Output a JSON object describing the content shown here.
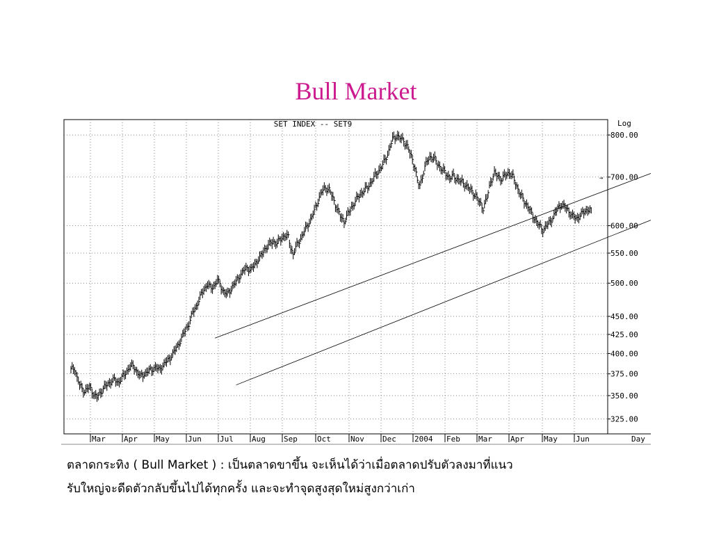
{
  "slide": {
    "title": "Bull Market",
    "caption_line1": "ตลาดกระทิง ( Bull Market ) : เป็นตลาดขาขึ้น จะเห็นได้ว่าเมื่อตลาดปรับตัวลงมาที่แนว",
    "caption_line2": "รับใหญ่จะดีดตัวกลับขึ้นไปได้ทุกครั้ง และจะทำจุดสูงสุดใหม่สูงกว่าเก่า"
  },
  "chart_data": {
    "type": "line",
    "title": "SET INDEX -- SET9",
    "scale": "Log",
    "xlabel": "Day",
    "grid": true,
    "ylim": [
      310,
      840
    ],
    "y_ticks": [
      "800.00",
      "700.00",
      "600.00",
      "550.00",
      "500.00",
      "450.00",
      "425.00",
      "400.00",
      "375.00",
      "350.00",
      "325.00"
    ],
    "x_labels": [
      "Mar",
      "Apr",
      "May",
      "Jun",
      "Jul",
      "Aug",
      "Sep",
      "Oct",
      "Nov",
      "Dec",
      "2004",
      "Feb",
      "Mar",
      "Apr",
      "May",
      "Jun"
    ],
    "series": [
      {
        "values": [
          [
            0,
            380
          ],
          [
            3,
            382
          ],
          [
            5,
            370
          ],
          [
            7,
            362
          ],
          [
            9,
            358
          ],
          [
            11,
            355
          ],
          [
            13,
            357
          ],
          [
            15,
            360
          ],
          [
            17,
            355
          ],
          [
            19,
            350
          ],
          [
            21,
            348
          ],
          [
            23,
            352
          ],
          [
            26,
            358
          ],
          [
            29,
            362
          ],
          [
            32,
            366
          ],
          [
            35,
            368
          ],
          [
            38,
            365
          ],
          [
            41,
            370
          ],
          [
            44,
            376
          ],
          [
            47,
            383
          ],
          [
            50,
            385
          ],
          [
            53,
            378
          ],
          [
            56,
            372
          ],
          [
            59,
            375
          ],
          [
            62,
            378
          ],
          [
            65,
            380
          ],
          [
            68,
            383
          ],
          [
            71,
            380
          ],
          [
            74,
            385
          ],
          [
            77,
            390
          ],
          [
            80,
            395
          ],
          [
            83,
            402
          ],
          [
            86,
            410
          ],
          [
            89,
            420
          ],
          [
            92,
            430
          ],
          [
            95,
            440
          ],
          [
            98,
            455
          ],
          [
            101,
            465
          ],
          [
            104,
            478
          ],
          [
            107,
            490
          ],
          [
            110,
            498
          ],
          [
            113,
            492
          ],
          [
            116,
            498
          ],
          [
            118,
            505
          ],
          [
            120,
            498
          ],
          [
            122,
            490
          ],
          [
            124,
            485
          ],
          [
            126,
            483
          ],
          [
            128,
            488
          ],
          [
            130,
            495
          ],
          [
            133,
            502
          ],
          [
            136,
            512
          ],
          [
            139,
            520
          ],
          [
            142,
            525
          ],
          [
            145,
            522
          ],
          [
            148,
            530
          ],
          [
            151,
            540
          ],
          [
            154,
            548
          ],
          [
            157,
            560
          ],
          [
            160,
            566
          ],
          [
            163,
            570
          ],
          [
            166,
            568
          ],
          [
            169,
            575
          ],
          [
            172,
            582
          ],
          [
            175,
            578
          ],
          [
            177,
            560
          ],
          [
            179,
            548
          ],
          [
            181,
            560
          ],
          [
            184,
            572
          ],
          [
            187,
            585
          ],
          [
            190,
            598
          ],
          [
            193,
            612
          ],
          [
            196,
            628
          ],
          [
            199,
            650
          ],
          [
            202,
            668
          ],
          [
            205,
            677
          ],
          [
            208,
            672
          ],
          [
            211,
            655
          ],
          [
            214,
            635
          ],
          [
            217,
            618
          ],
          [
            220,
            608
          ],
          [
            223,
            622
          ],
          [
            226,
            636
          ],
          [
            229,
            648
          ],
          [
            232,
            660
          ],
          [
            235,
            668
          ],
          [
            238,
            675
          ],
          [
            241,
            686
          ],
          [
            244,
            698
          ],
          [
            247,
            712
          ],
          [
            250,
            722
          ],
          [
            253,
            740
          ],
          [
            256,
            760
          ],
          [
            259,
            790
          ],
          [
            262,
            798
          ],
          [
            265,
            792
          ],
          [
            268,
            786
          ],
          [
            271,
            770
          ],
          [
            274,
            748
          ],
          [
            277,
            722
          ],
          [
            279,
            690
          ],
          [
            281,
            682
          ],
          [
            284,
            712
          ],
          [
            287,
            738
          ],
          [
            290,
            748
          ],
          [
            293,
            740
          ],
          [
            296,
            727
          ],
          [
            299,
            716
          ],
          [
            302,
            708
          ],
          [
            305,
            698
          ],
          [
            308,
            702
          ],
          [
            311,
            696
          ],
          [
            314,
            690
          ],
          [
            317,
            685
          ],
          [
            320,
            677
          ],
          [
            323,
            668
          ],
          [
            326,
            660
          ],
          [
            329,
            645
          ],
          [
            332,
            635
          ],
          [
            335,
            655
          ],
          [
            338,
            690
          ],
          [
            341,
            708
          ],
          [
            344,
            702
          ],
          [
            347,
            695
          ],
          [
            350,
            705
          ],
          [
            353,
            710
          ],
          [
            356,
            700
          ],
          [
            359,
            680
          ],
          [
            362,
            662
          ],
          [
            365,
            648
          ],
          [
            368,
            638
          ],
          [
            371,
            622
          ],
          [
            374,
            612
          ],
          [
            377,
            600
          ],
          [
            380,
            592
          ],
          [
            383,
            600
          ],
          [
            386,
            608
          ],
          [
            389,
            620
          ],
          [
            392,
            634
          ],
          [
            395,
            642
          ],
          [
            398,
            636
          ],
          [
            401,
            628
          ],
          [
            404,
            618
          ],
          [
            407,
            614
          ],
          [
            410,
            620
          ],
          [
            413,
            626
          ],
          [
            416,
            632
          ],
          [
            419,
            630
          ]
        ]
      }
    ],
    "annotations": [
      {
        "type": "channel-upper",
        "points": [
          [
            116,
            420
          ],
          [
            580,
            838
          ]
        ]
      },
      {
        "type": "channel-lower",
        "points": [
          [
            133,
            362
          ],
          [
            605,
            758
          ]
        ]
      }
    ]
  }
}
